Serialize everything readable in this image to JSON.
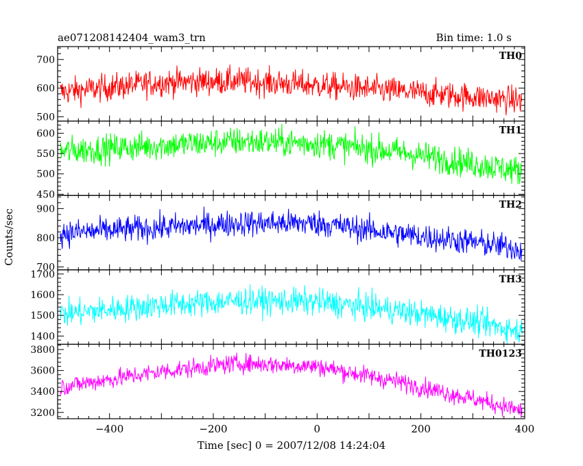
{
  "header": {
    "title": "ae071208142404_wam3_trn",
    "bin_time": "Bin time: 1.0 s"
  },
  "axes": {
    "ylabel": "Counts/sec",
    "xlabel": "Time [sec] 0 = 2007/12/08 14:24:04"
  },
  "chart_data": {
    "type": "line",
    "x_range": [
      -500,
      400
    ],
    "x_ticks": [
      -400,
      -200,
      0,
      200,
      400
    ],
    "x_tick_labels": [
      "−400",
      "−200",
      "0",
      "200",
      "400"
    ],
    "panels": [
      {
        "name": "TH0",
        "color": "#ff0000",
        "ylim": [
          485,
          745
        ],
        "yticks": [
          500,
          600,
          700
        ],
        "trend": [
          [
            -500,
            585
          ],
          [
            -300,
            620
          ],
          [
            -150,
            625
          ],
          [
            0,
            610
          ],
          [
            150,
            590
          ],
          [
            300,
            570
          ],
          [
            400,
            555
          ]
        ],
        "noise": 40
      },
      {
        "name": "TH1",
        "color": "#00ff00",
        "ylim": [
          447,
          630
        ],
        "yticks": [
          450,
          500,
          550,
          600
        ],
        "trend": [
          [
            -500,
            555
          ],
          [
            -300,
            570
          ],
          [
            -150,
            580
          ],
          [
            0,
            575
          ],
          [
            150,
            555
          ],
          [
            300,
            525
          ],
          [
            400,
            505
          ]
        ],
        "noise": 30
      },
      {
        "name": "TH2",
        "color": "#0000ff",
        "ylim": [
          690,
          945
        ],
        "yticks": [
          700,
          800,
          900
        ],
        "trend": [
          [
            -500,
            815
          ],
          [
            -300,
            835
          ],
          [
            -150,
            850
          ],
          [
            0,
            850
          ],
          [
            150,
            815
          ],
          [
            300,
            785
          ],
          [
            400,
            760
          ]
        ],
        "noise": 38
      },
      {
        "name": "TH3",
        "color": "#00ffff",
        "ylim": [
          1360,
          1720
        ],
        "yticks": [
          1400,
          1500,
          1600,
          1700
        ],
        "trend": [
          [
            -500,
            1505
          ],
          [
            -300,
            1550
          ],
          [
            -150,
            1570
          ],
          [
            0,
            1565
          ],
          [
            150,
            1525
          ],
          [
            300,
            1470
          ],
          [
            400,
            1420
          ]
        ],
        "noise": 55
      },
      {
        "name": "TH0123",
        "color": "#ff00ff",
        "ylim": [
          3140,
          3850
        ],
        "yticks": [
          3200,
          3400,
          3600,
          3800
        ],
        "trend": [
          [
            -500,
            3440
          ],
          [
            -300,
            3590
          ],
          [
            -150,
            3670
          ],
          [
            0,
            3640
          ],
          [
            150,
            3500
          ],
          [
            300,
            3330
          ],
          [
            400,
            3210
          ]
        ],
        "noise": 75
      }
    ]
  }
}
